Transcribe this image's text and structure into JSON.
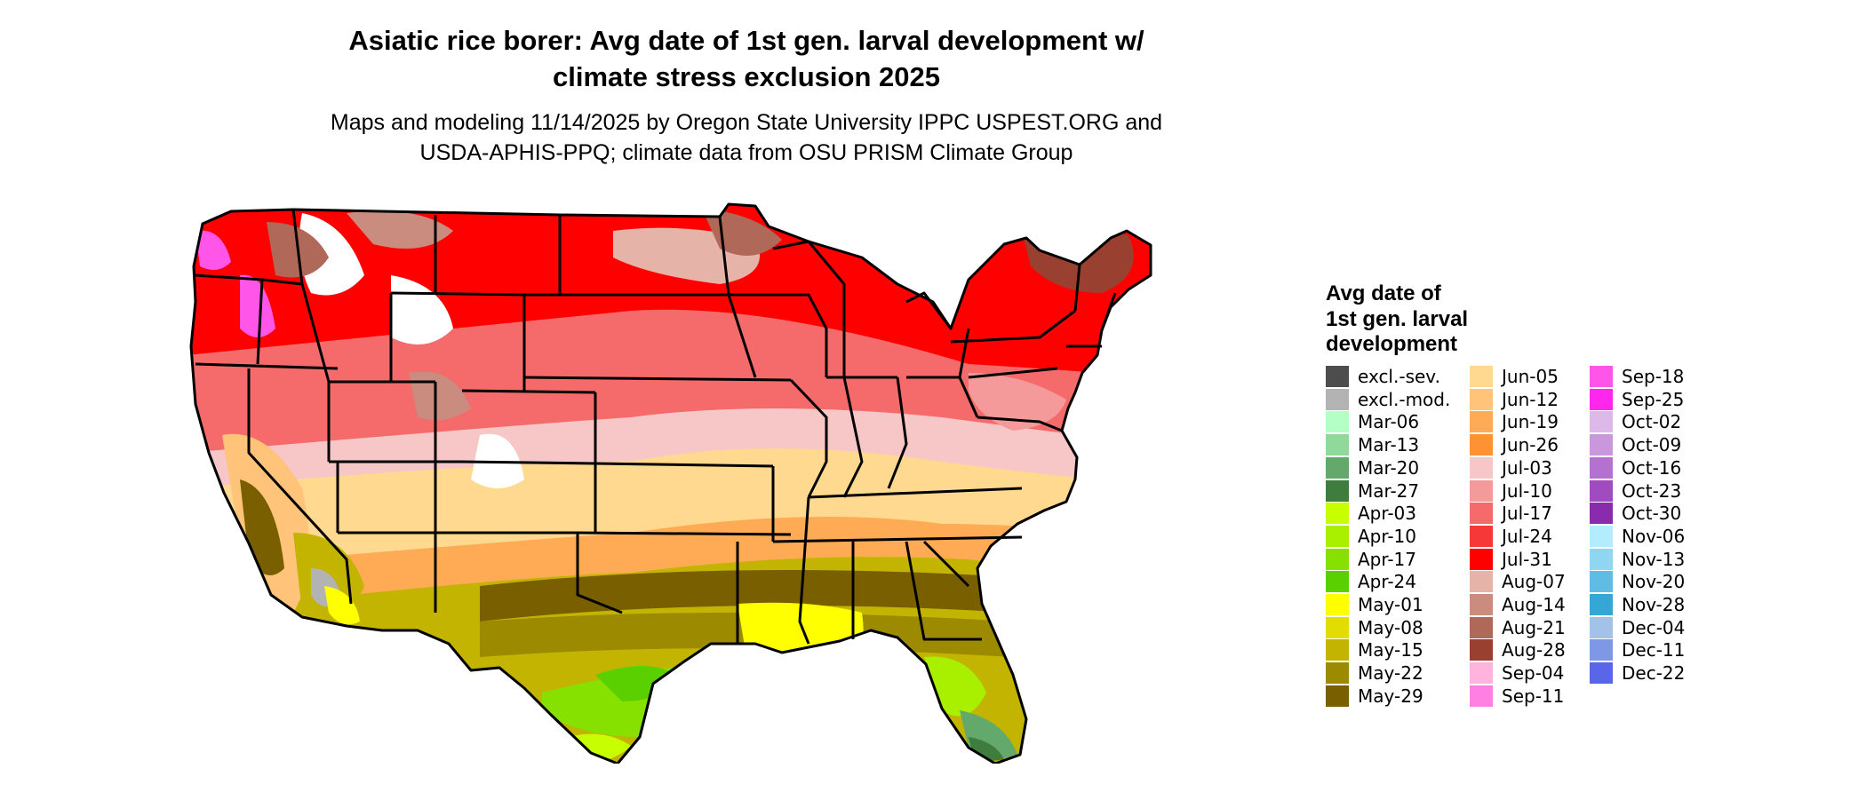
{
  "title_lines": [
    "Asiatic rice borer: Avg date of 1st gen. larval development w/",
    "climate stress exclusion 2025"
  ],
  "subtitle_lines": [
    "Maps and modeling 11/14/2025 by Oregon State University IPPC USPEST.ORG and",
    "USDA-APHIS-PPQ; climate data from OSU PRISM Climate Group"
  ],
  "legend": {
    "title_lines": [
      "Avg date of",
      "1st gen. larval",
      "development"
    ],
    "columns": [
      [
        {
          "label": "excl.-sev.",
          "color": "#4d4d4d"
        },
        {
          "label": "excl.-mod.",
          "color": "#b3b3b3"
        },
        {
          "label": "Mar-06",
          "color": "#b3ffc6"
        },
        {
          "label": "Mar-13",
          "color": "#8fd99b"
        },
        {
          "label": "Mar-20",
          "color": "#63a96c"
        },
        {
          "label": "Mar-27",
          "color": "#3e7d3e"
        },
        {
          "label": "Apr-03",
          "color": "#c8ff00"
        },
        {
          "label": "Apr-10",
          "color": "#a8ef00"
        },
        {
          "label": "Apr-17",
          "color": "#86e000"
        },
        {
          "label": "Apr-24",
          "color": "#5ad000"
        },
        {
          "label": "May-01",
          "color": "#ffff00"
        },
        {
          "label": "May-08",
          "color": "#e3dc00"
        },
        {
          "label": "May-15",
          "color": "#c2b400"
        },
        {
          "label": "May-22",
          "color": "#9c8a00"
        },
        {
          "label": "May-29",
          "color": "#7a5f00"
        }
      ],
      [
        {
          "label": "Jun-05",
          "color": "#ffd98f"
        },
        {
          "label": "Jun-12",
          "color": "#ffc37a"
        },
        {
          "label": "Jun-19",
          "color": "#ffab55"
        },
        {
          "label": "Jun-26",
          "color": "#ff9233"
        },
        {
          "label": "Jul-03",
          "color": "#f7c6c6"
        },
        {
          "label": "Jul-10",
          "color": "#f59a9a"
        },
        {
          "label": "Jul-17",
          "color": "#f56a6a"
        },
        {
          "label": "Jul-24",
          "color": "#f73838"
        },
        {
          "label": "Jul-31",
          "color": "#ff0000"
        },
        {
          "label": "Aug-07",
          "color": "#e6b3a8"
        },
        {
          "label": "Aug-14",
          "color": "#c98c7f"
        },
        {
          "label": "Aug-21",
          "color": "#b06858"
        },
        {
          "label": "Aug-28",
          "color": "#9a4030"
        },
        {
          "label": "Sep-04",
          "color": "#ffb3dd"
        },
        {
          "label": "Sep-11",
          "color": "#ff80e0"
        }
      ],
      [
        {
          "label": "Sep-18",
          "color": "#ff55e8"
        },
        {
          "label": "Sep-25",
          "color": "#ff26ee"
        },
        {
          "label": "Oct-02",
          "color": "#dcb9e8"
        },
        {
          "label": "Oct-09",
          "color": "#c997dc"
        },
        {
          "label": "Oct-16",
          "color": "#b571cf"
        },
        {
          "label": "Oct-23",
          "color": "#a04bc0"
        },
        {
          "label": "Oct-30",
          "color": "#8a2aae"
        },
        {
          "label": "Nov-06",
          "color": "#b3ecff"
        },
        {
          "label": "Nov-13",
          "color": "#8fd6f2"
        },
        {
          "label": "Nov-20",
          "color": "#5fbde5"
        },
        {
          "label": "Nov-28",
          "color": "#34a7d6"
        },
        {
          "label": "Dec-04",
          "color": "#a3c2e8"
        },
        {
          "label": "Dec-11",
          "color": "#7f98e6"
        },
        {
          "label": "Dec-22",
          "color": "#5a66e8"
        }
      ]
    ]
  }
}
